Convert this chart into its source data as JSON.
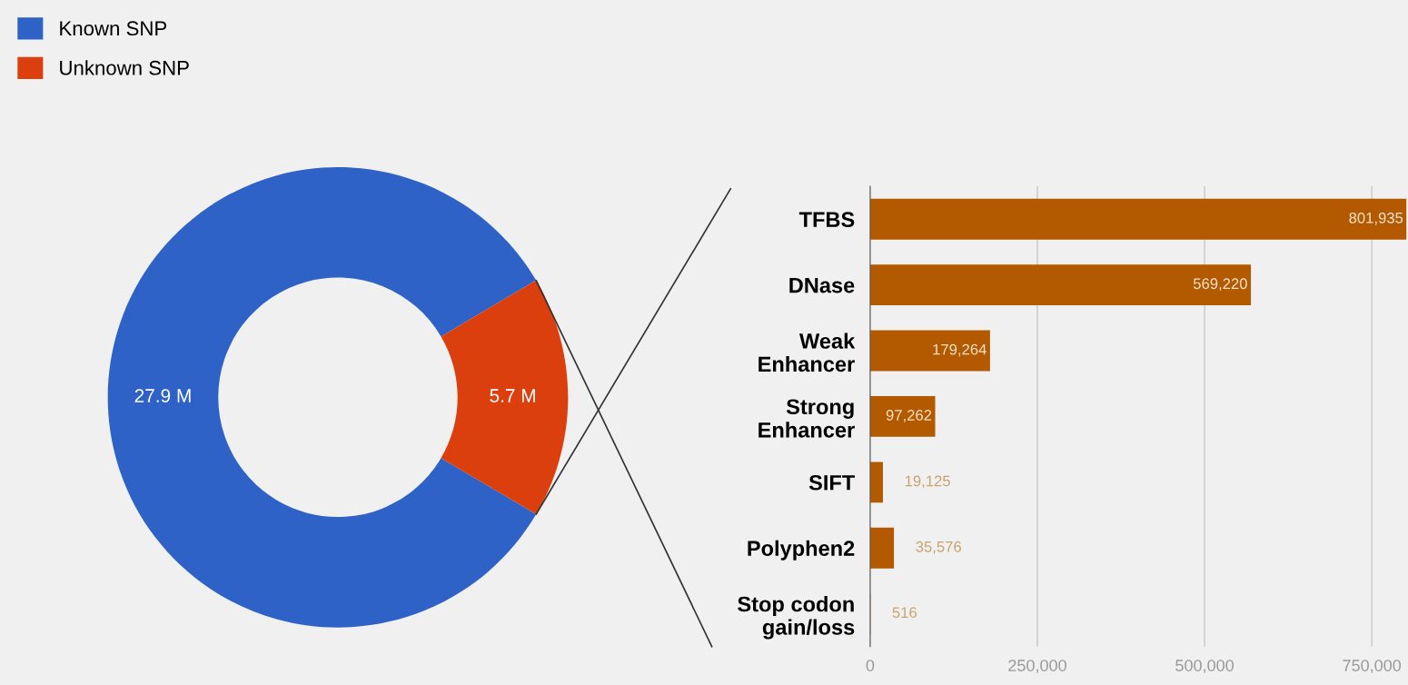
{
  "chart_data": [
    {
      "type": "donut",
      "categories": [
        "Known SNP",
        "Unknown SNP"
      ],
      "values": [
        27.9,
        5.7
      ],
      "colors": [
        "#2f62c6",
        "#dc3f0e"
      ],
      "value_labels": [
        "27.9 M",
        "5.7 M"
      ],
      "legend": "top left"
    },
    {
      "type": "bar",
      "orientation": "horizontal",
      "categories": [
        "TFBS",
        "DNase",
        "Weak\nEnhancer",
        "Strong\nEnhancer",
        "SIFT",
        "Polyphen2",
        "Stop codon\ngain/loss"
      ],
      "values": [
        801935,
        569220,
        179264,
        97262,
        19125,
        35576,
        516
      ],
      "color": "#b35a00",
      "value_labels": [
        "801,935",
        "569,220",
        "179,264",
        "97,262",
        "19,125",
        "35,576",
        "516"
      ],
      "xlim": [
        0,
        802000
      ],
      "xticks": [
        {
          "value": 0,
          "label": "0"
        },
        {
          "value": 250000,
          "label": "250,000"
        },
        {
          "value": 500000,
          "label": "500,000"
        },
        {
          "value": 750000,
          "label": "750,000"
        }
      ],
      "grid": "x"
    }
  ]
}
